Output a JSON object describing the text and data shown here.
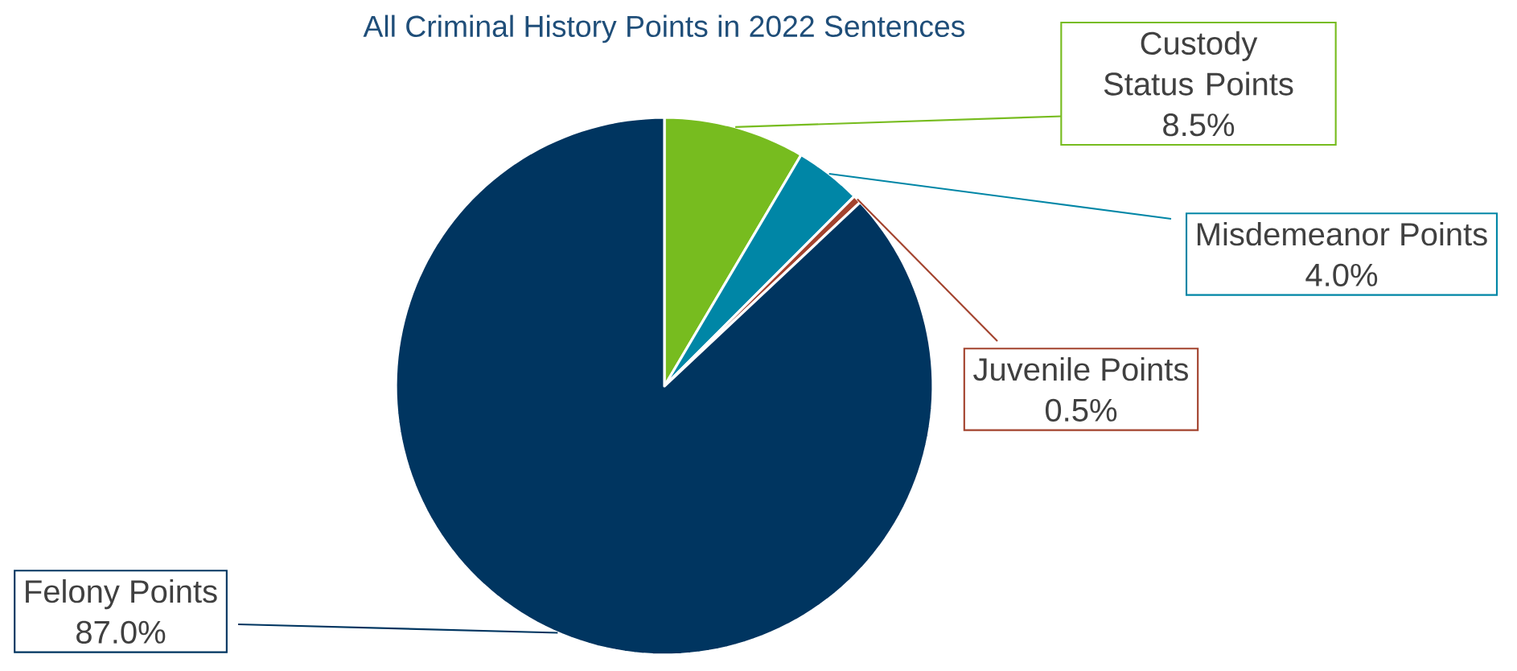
{
  "chart_data": {
    "type": "pie",
    "title": "All Criminal History Points in 2022 Sentences",
    "categories": [
      "Custody Status Points",
      "Misdemeanor Points",
      "Juvenile Points",
      "Felony Points"
    ],
    "values": [
      8.5,
      4.0,
      0.5,
      87.0
    ],
    "colors": [
      "#77bc1f",
      "#0086a6",
      "#a3432e",
      "#003560"
    ],
    "value_labels": [
      "8.5%",
      "4.0%",
      "0.5%",
      "87.0%"
    ]
  }
}
